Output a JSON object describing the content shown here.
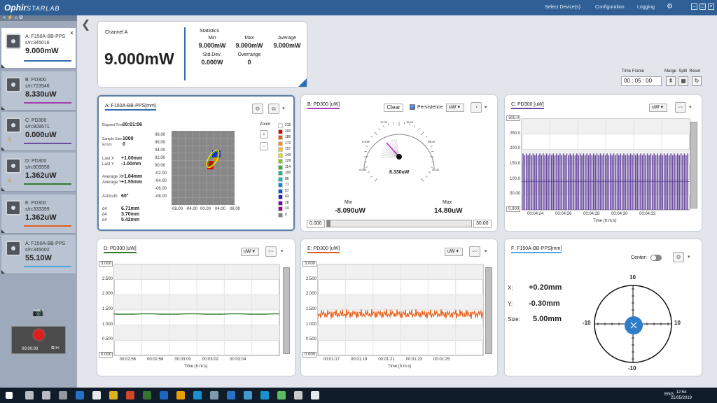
{
  "app": {
    "logo": "Ophir",
    "logo2": "STARLAB",
    "select_devices": "Select Device(s)",
    "configuration": "Configuration",
    "logging": "Logging"
  },
  "sidebar": {
    "tab": "+  ⚡ ⌂  ⚙",
    "devices": [
      {
        "name": "A: F150A-BB-PPS",
        "serial": "s/n:345016",
        "value": "9.000mW",
        "color": "#2f6fb0",
        "active": true
      },
      {
        "name": "B: PD300",
        "serial": "s/n:723546",
        "value": "8.330uW",
        "color": "#a040b0"
      },
      {
        "name": "C: PD300",
        "serial": "s/n:809571",
        "value": "0.000uW",
        "color": "#6a4ca0",
        "warn": true
      },
      {
        "name": "D: PD300",
        "serial": "s/n:809558",
        "value": "1.362uW",
        "color": "#2f7a2f",
        "warn": true
      },
      {
        "name": "E: PD300",
        "serial": "s/n:333399",
        "value": "1.362uW",
        "color": "#e06020"
      },
      {
        "name": "A: F150A-BB-PPS",
        "serial": "s/n:345002",
        "value": "55.10W",
        "color": "#4aa8e0"
      }
    ],
    "rec_time": "00:00:00"
  },
  "channel": {
    "label": "Channel A",
    "value": "9.000mW",
    "stats_title": "Statistics",
    "min_l": "Min",
    "min": "9.000mW",
    "max_l": "Max",
    "max": "9.000mW",
    "avg_l": "Average",
    "avg": "9.000mW",
    "std_l": "Std.Dev.",
    "std": "0.000W",
    "over_l": "Overrange",
    "over": "0"
  },
  "timeframe": {
    "label": "Time Frame",
    "value": "00 : 05 : 00",
    "merge": "Merge",
    "split": "Split",
    "reset": "Reset"
  },
  "panelA": {
    "title": "A: F150A-BB-PPS[mm]",
    "rows": [
      [
        "Elapsed Time",
        "00:01:06"
      ],
      [
        "Sample Size",
        "1000"
      ],
      [
        "Errors",
        "0"
      ],
      [
        "Last X",
        "+1.00mm"
      ],
      [
        "Last Y",
        "-1.00mm"
      ],
      [
        "Average X",
        "+1.84mm"
      ],
      [
        "Average Y",
        "+1.55mm"
      ],
      [
        "Azimuth",
        "60°"
      ],
      [
        "d4",
        "6.71mm"
      ],
      [
        "d4",
        "3.70mm"
      ],
      [
        "d4",
        "5.42mm"
      ]
    ],
    "yticks": [
      "08.00",
      "06.00",
      "04.00",
      "02.00",
      "00.00",
      "-02.00",
      "-04.00",
      "-06.00",
      "-08.00"
    ],
    "xticks": [
      "-08.00",
      "-04.00",
      "00.00",
      "04.00",
      "08.00"
    ],
    "zoom": "Zoom",
    "plus": "+",
    "minus": "-",
    "legend": [
      "215",
      "200",
      "186",
      "172",
      "157",
      "143",
      "129",
      "114",
      "100",
      "86",
      "71",
      "57",
      "43",
      "28",
      "14",
      "0"
    ],
    "legend_colors": [
      "#ffffff",
      "#e00000",
      "#ff5000",
      "#ff9000",
      "#ffc000",
      "#d8e000",
      "#80d000",
      "#20c020",
      "#00c080",
      "#00c0c0",
      "#0090e0",
      "#0050e0",
      "#2020c0",
      "#7000c0",
      "#a000a0",
      "#808080"
    ]
  },
  "panelB": {
    "title": "B: PD300 [uW]",
    "clear": "Clear",
    "persistence": "Persistence",
    "unit": "uW",
    "reading": "8.330uW",
    "min_l": "Min",
    "min": "-8.090uW",
    "max_l": "Max",
    "max": "14.80uW",
    "range_lo": "0.000",
    "range_hi": "30.00",
    "gauge_ticks": [
      "0.000",
      "6.000",
      "12.00",
      "18.00",
      "24.00",
      "30.00"
    ]
  },
  "panelC": {
    "title": "C: PD300 [uW]",
    "unit": "uW",
    "ytop": "300.0",
    "ybot": "0.000",
    "yticks": [
      "250.0",
      "200.0",
      "150.0",
      "100.0",
      "50.00"
    ],
    "xticks": [
      "00:04:24",
      "00:04:26",
      "00:04:28",
      "00:04:30",
      "00:04:32"
    ],
    "xlabel": "Time (h:m:s)"
  },
  "panelD": {
    "title": "D: PD300 [uW]",
    "unit": "uW",
    "ytop": "3.000",
    "ybot": "0.000",
    "yticks": [
      "2.500",
      "2.000",
      "1.500",
      "1.000",
      "0.500"
    ],
    "xticks": [
      "00:02:56",
      "00:02:58",
      "00:03:00",
      "00:03:02",
      "00:03:04"
    ],
    "xlabel": "Time (h:m:s)"
  },
  "panelE": {
    "title": "E: PD300 [uW]",
    "unit": "uW",
    "ytop": "3.000",
    "ybot": "0.000",
    "yticks": [
      "2.500",
      "2.000",
      "1.500",
      "1.000",
      "0.500"
    ],
    "xticks": [
      "00:01:17",
      "00:01:19",
      "00:01:21",
      "00:01:23",
      "00:01:25"
    ],
    "xlabel": "Time (h:m:s)"
  },
  "panelF": {
    "title": "F: F150A-BB-PPS[mm]",
    "center": "Center:",
    "x_l": "X:",
    "x": "+0.20mm",
    "y_l": "Y:",
    "y": "-0.30mm",
    "size_l": "Size:",
    "size": "5.00mm",
    "t10": "10",
    "b10": "-10",
    "l10": "-10",
    "r10": "10"
  },
  "taskbar": {
    "lang": "ENG",
    "time": "12:54",
    "date": "21/05/2019"
  },
  "chart_data": [
    {
      "type": "line",
      "title": "C: PD300 [uW]",
      "xlabel": "Time (h:m:s)",
      "ylim": [
        0,
        300
      ],
      "series": [
        {
          "values_range": [
            90,
            185
          ]
        }
      ]
    },
    {
      "type": "line",
      "title": "D: PD300 [uW]",
      "xlabel": "Time (h:m:s)",
      "ylim": [
        0,
        3
      ],
      "series": [
        {
          "values_mean": 1.36
        }
      ]
    },
    {
      "type": "line",
      "title": "E: PD300 [uW]",
      "xlabel": "Time (h:m:s)",
      "ylim": [
        0,
        3
      ],
      "series": [
        {
          "values_mean": 1.36
        }
      ]
    }
  ]
}
